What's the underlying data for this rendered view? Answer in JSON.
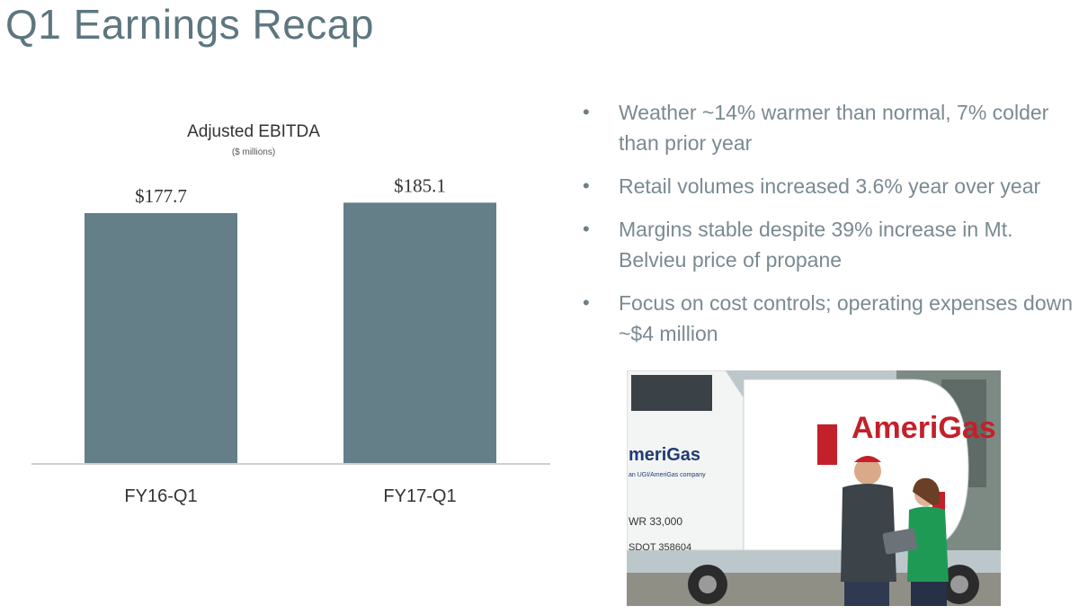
{
  "slide": {
    "title": "Q1 Earnings Recap"
  },
  "chart_data": {
    "type": "bar",
    "title": "Adjusted EBITDA",
    "subtitle": "($ millions)",
    "categories": [
      "FY16-Q1",
      "FY17-Q1"
    ],
    "values": [
      177.7,
      185.1
    ],
    "data_labels": [
      "$177.7",
      "$185.1"
    ],
    "xlabel": "",
    "ylabel": "",
    "ylim": [
      0,
      200
    ],
    "grid": false,
    "legend": "none",
    "bar_color": "#647f87"
  },
  "bullets": [
    {
      "text": "Weather ~14% warmer than normal, 7% colder than prior year"
    },
    {
      "text": "Retail volumes increased 3.6% year over year"
    },
    {
      "text": "Margins stable despite 39% increase in Mt. Belvieu price of propane"
    },
    {
      "text": "Focus on cost controls; operating expenses down ~$4 million"
    }
  ],
  "bullet_marker": "•",
  "photo": {
    "truck_logo_text": "AmeriGas",
    "cab_logo_text": "meriGas",
    "cab_tagline": "an UGI/AmeriGas company",
    "cab_reg_1": "WR 33,000",
    "cab_reg_2": "SDOT 358604"
  },
  "colors": {
    "title": "#5d7680",
    "body_text": "#7a8a91",
    "bar": "#647f87",
    "logo_red": "#c4202a",
    "logo_blue": "#1f3b73"
  }
}
